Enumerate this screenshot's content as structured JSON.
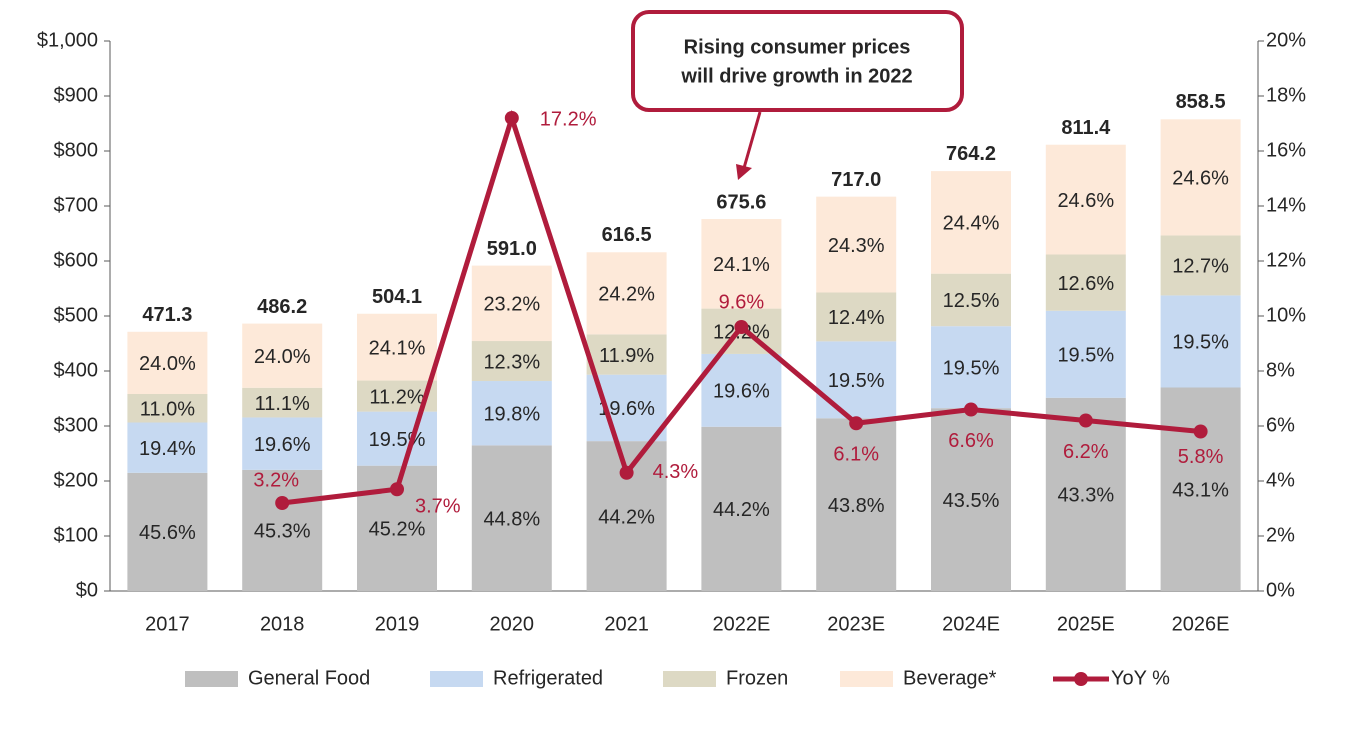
{
  "chart_data": {
    "type": "bar",
    "categories": [
      "2017",
      "2018",
      "2019",
      "2020",
      "2021",
      "2022E",
      "2023E",
      "2024E",
      "2025E",
      "2026E"
    ],
    "totals": {
      "values": [
        471.3,
        486.2,
        504.1,
        591.0,
        616.5,
        675.6,
        717.0,
        764.2,
        811.4,
        858.5
      ],
      "value_labels": [
        "471.3",
        "486.2",
        "504.1",
        "591.0",
        "616.5",
        "675.6",
        "717.0",
        "764.2",
        "811.4",
        "858.5"
      ]
    },
    "series": [
      {
        "name": "General Food",
        "color": "#bfbfbf",
        "values": [
          45.6,
          45.3,
          45.2,
          44.8,
          44.2,
          44.2,
          43.8,
          43.5,
          43.3,
          43.1
        ],
        "value_labels": [
          "45.6%",
          "45.3%",
          "45.2%",
          "44.8%",
          "44.2%",
          "44.2%",
          "43.8%",
          "43.5%",
          "43.3%",
          "43.1%"
        ]
      },
      {
        "name": "Refrigerated",
        "color": "#c6d9f1",
        "values": [
          19.4,
          19.6,
          19.5,
          19.8,
          19.6,
          19.6,
          19.5,
          19.5,
          19.5,
          19.5
        ],
        "value_labels": [
          "19.4%",
          "19.6%",
          "19.5%",
          "19.8%",
          "19.6%",
          "19.6%",
          "19.5%",
          "19.5%",
          "19.5%",
          "19.5%"
        ]
      },
      {
        "name": "Frozen",
        "color": "#ddd9c4",
        "values": [
          11.0,
          11.1,
          11.2,
          12.3,
          11.9,
          12.2,
          12.4,
          12.5,
          12.6,
          12.7
        ],
        "value_labels": [
          "11.0%",
          "11.1%",
          "11.2%",
          "12.3%",
          "11.9%",
          "12.2%",
          "12.4%",
          "12.5%",
          "12.6%",
          "12.7%"
        ]
      },
      {
        "name": "Beverage*",
        "color": "#fde9d9",
        "values": [
          24.0,
          24.0,
          24.1,
          23.2,
          24.2,
          24.1,
          24.3,
          24.4,
          24.6,
          24.6
        ],
        "value_labels": [
          "24.0%",
          "24.0%",
          "24.1%",
          "23.2%",
          "24.2%",
          "24.1%",
          "24.3%",
          "24.4%",
          "24.6%",
          "24.6%"
        ]
      },
      {
        "name": "YoY %",
        "type": "line",
        "axis": "y2",
        "color": "#b01c3c",
        "values": [
          null,
          3.2,
          3.7,
          17.2,
          4.3,
          9.6,
          6.1,
          6.6,
          6.2,
          5.8
        ],
        "value_labels": [
          null,
          "3.2%",
          "3.7%",
          "17.2%",
          "4.3%",
          "9.6%",
          "6.1%",
          "6.6%",
          "6.2%",
          "5.8%"
        ]
      }
    ],
    "ylim": [
      0,
      1000
    ],
    "yticks": [
      {
        "value": 0,
        "label": "$0"
      },
      {
        "value": 100,
        "label": "$100"
      },
      {
        "value": 200,
        "label": "$200"
      },
      {
        "value": 300,
        "label": "$300"
      },
      {
        "value": 400,
        "label": "$400"
      },
      {
        "value": 500,
        "label": "$500"
      },
      {
        "value": 600,
        "label": "$600"
      },
      {
        "value": 700,
        "label": "$700"
      },
      {
        "value": 800,
        "label": "$800"
      },
      {
        "value": 900,
        "label": "$900"
      },
      {
        "value": 1000,
        "label": "$1,000"
      }
    ],
    "y2lim": [
      0,
      20
    ],
    "y2ticks": [
      {
        "value": 0,
        "label": "0%"
      },
      {
        "value": 2,
        "label": "2%"
      },
      {
        "value": 4,
        "label": "4%"
      },
      {
        "value": 6,
        "label": "6%"
      },
      {
        "value": 8,
        "label": "8%"
      },
      {
        "value": 10,
        "label": "10%"
      },
      {
        "value": 12,
        "label": "12%"
      },
      {
        "value": 14,
        "label": "14%"
      },
      {
        "value": 16,
        "label": "16%"
      },
      {
        "value": 18,
        "label": "18%"
      },
      {
        "value": 20,
        "label": "20%"
      }
    ],
    "annotation": [
      "Rising consumer prices",
      "will drive growth in 2022"
    ]
  }
}
